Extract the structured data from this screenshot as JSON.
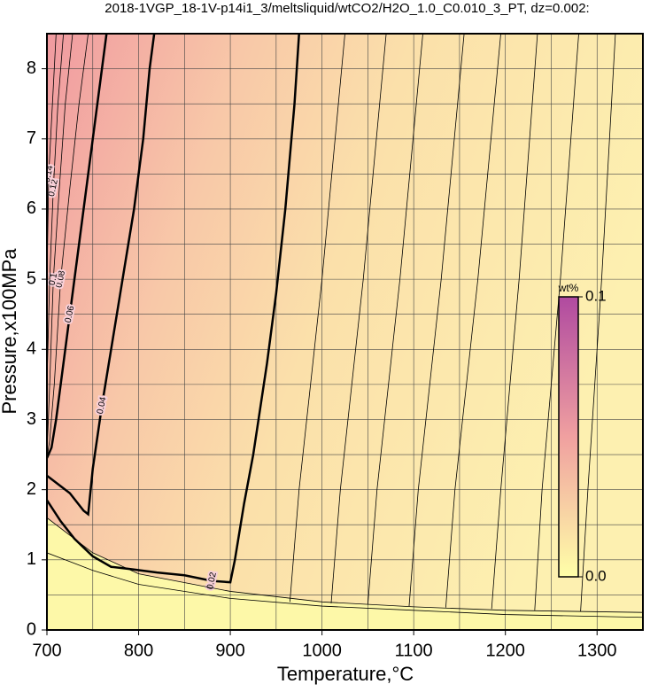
{
  "chart_data": {
    "type": "contour",
    "title": "2018-1VGP_18-1V-p14i1_3/meltsliquid/wtCO2/H2O_1.0_C0.010_3_PT, dz=0.002:",
    "x_label": "Temperature,°C",
    "y_label": "Pressure,x100MPa",
    "xlim": [
      700,
      1350
    ],
    "ylim": [
      0,
      8.5
    ],
    "xticks": [
      700,
      800,
      900,
      1000,
      1100,
      1200,
      1300
    ],
    "yticks": [
      0,
      1,
      2,
      3,
      4,
      5,
      6,
      7,
      8
    ],
    "xgrid": [
      700,
      750,
      800,
      850,
      900,
      950,
      1000,
      1050,
      1100,
      1150,
      1200,
      1250,
      1300,
      1350
    ],
    "ygrid": [
      0,
      0.5,
      1,
      1.5,
      2,
      2.5,
      3,
      3.5,
      4,
      4.5,
      5,
      5.5,
      6,
      6.5,
      7,
      7.5,
      8,
      8.5
    ],
    "colorbar": {
      "label": "wt%",
      "ticks": [
        {
          "value": 0,
          "label": "0.0"
        },
        0.1
      ],
      "colors": [
        "#ffffa8",
        "#f0a0a0",
        "#b04aa0"
      ]
    },
    "contours": [
      {
        "level": 0.02,
        "bold": true,
        "labeled": true,
        "x": [
          975,
          970,
          960,
          950,
          940,
          925,
          915,
          905,
          900,
          880,
          850,
          820,
          790,
          770,
          750,
          730,
          715,
          700
        ],
        "y": [
          8.5,
          7.5,
          6,
          4.8,
          3.8,
          2.5,
          1.8,
          1.0,
          0.68,
          0.7,
          0.78,
          0.82,
          0.87,
          0.9,
          1.05,
          1.3,
          1.55,
          1.85
        ]
      },
      {
        "level": 0.04,
        "bold": true,
        "labeled": true,
        "x": [
          817,
          812,
          805,
          795,
          780,
          770,
          760,
          750,
          745,
          740,
          725,
          710,
          700
        ],
        "y": [
          8.5,
          8,
          7,
          6,
          4.8,
          4,
          3.2,
          2.3,
          1.65,
          1.7,
          1.95,
          2.1,
          2.2
        ]
      },
      {
        "level": 0.06,
        "bold": true,
        "labeled": true,
        "x": [
          765,
          755,
          745,
          735,
          725,
          715,
          710,
          705,
          700
        ],
        "y": [
          8.5,
          7.5,
          6.5,
          5.5,
          4.5,
          3.5,
          3.0,
          2.6,
          2.45
        ]
      },
      {
        "level": 0.08,
        "bold": false,
        "labeled": true,
        "x": [
          745,
          735,
          725,
          715,
          708,
          703,
          700
        ],
        "y": [
          8.5,
          7.5,
          6.3,
          5,
          3.5,
          2.7,
          2.45
        ]
      },
      {
        "level": 0.1,
        "bold": false,
        "labeled": true,
        "x": [
          728,
          720,
          713,
          707,
          703,
          700
        ],
        "y": [
          8.5,
          7.5,
          6.2,
          5,
          3.5,
          2.5
        ]
      },
      {
        "level": 0.12,
        "bold": false,
        "labeled": true,
        "x": [
          718,
          712,
          707,
          703,
          700
        ],
        "y": [
          8.5,
          7.5,
          6.3,
          5,
          3.5
        ]
      },
      {
        "level": 0.14,
        "bold": false,
        "labeled": true,
        "x": [
          710,
          706,
          702,
          700
        ],
        "y": [
          8.5,
          7.5,
          6.5,
          5
        ]
      },
      {
        "level": 0.018,
        "bold": false,
        "labeled": false,
        "x": [
          1025,
          1000,
          975,
          965
        ],
        "y": [
          8.5,
          5,
          2,
          0.4
        ]
      },
      {
        "level": 0.016,
        "bold": false,
        "labeled": false,
        "x": [
          1070,
          1045,
          1020,
          1010
        ],
        "y": [
          8.5,
          5,
          2,
          0.38
        ]
      },
      {
        "level": 0.014,
        "bold": false,
        "labeled": false,
        "x": [
          1110,
          1085,
          1060,
          1050
        ],
        "y": [
          8.5,
          5,
          2,
          0.36
        ]
      },
      {
        "level": 0.012,
        "bold": false,
        "labeled": false,
        "x": [
          1155,
          1130,
          1105,
          1095
        ],
        "y": [
          8.5,
          5,
          2,
          0.34
        ]
      },
      {
        "level": 0.01,
        "bold": false,
        "labeled": false,
        "x": [
          1195,
          1170,
          1145,
          1135
        ],
        "y": [
          8.5,
          5,
          2,
          0.32
        ]
      },
      {
        "level": 0.008,
        "bold": false,
        "labeled": false,
        "x": [
          1235,
          1215,
          1195,
          1185
        ],
        "y": [
          8.5,
          5,
          2,
          0.3
        ]
      },
      {
        "level": 0.006,
        "bold": false,
        "labeled": false,
        "x": [
          1280,
          1260,
          1240,
          1232
        ],
        "y": [
          8.5,
          5,
          2,
          0.28
        ]
      },
      {
        "level": 0.004,
        "bold": false,
        "labeled": false,
        "x": [
          1320,
          1305,
          1290,
          1282
        ],
        "y": [
          8.5,
          5,
          2,
          0.26
        ]
      },
      {
        "level": 0.002,
        "bold": false,
        "labeled": false,
        "x": [
          700,
          750,
          800,
          900,
          1000,
          1100,
          1200,
          1350
        ],
        "y": [
          1.6,
          1.1,
          0.8,
          0.55,
          0.4,
          0.33,
          0.28,
          0.25
        ]
      },
      {
        "level": 0.001,
        "bold": false,
        "labeled": false,
        "x": [
          700,
          750,
          800,
          900,
          1000,
          1100,
          1200,
          1350
        ],
        "y": [
          1.1,
          0.85,
          0.65,
          0.45,
          0.34,
          0.28,
          0.22,
          0.18
        ]
      }
    ]
  }
}
